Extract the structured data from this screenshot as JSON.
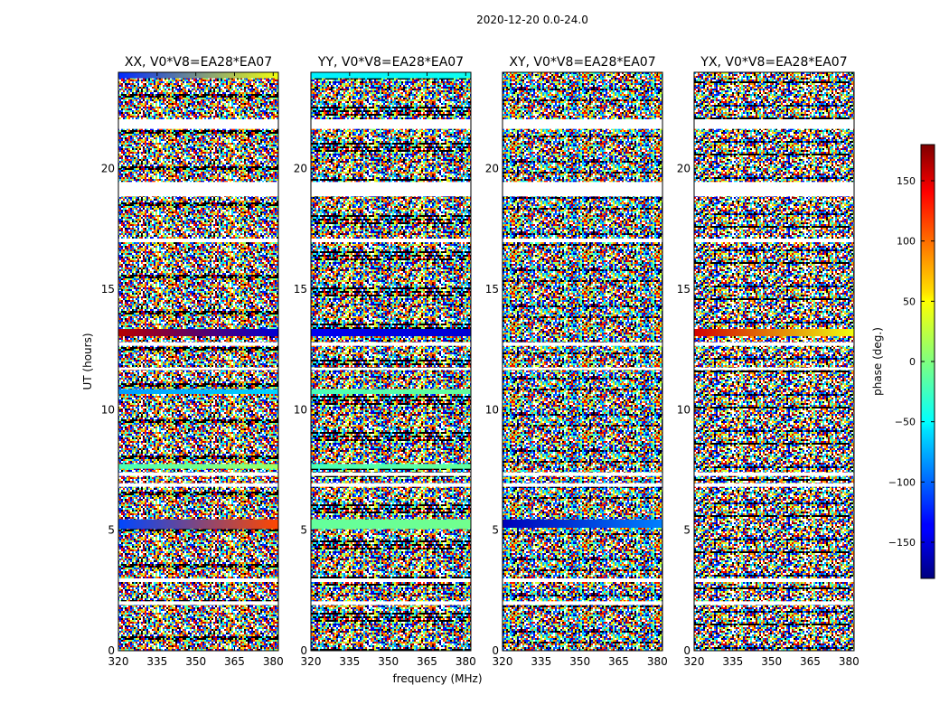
{
  "chart_data": {
    "type": "heatmap",
    "suptitle": "2020-12-20 0.0-24.0",
    "xlabel": "frequency (MHz)",
    "ylabel": "UT (hours)",
    "xlim": [
      320,
      382
    ],
    "ylim": [
      0,
      24
    ],
    "x_ticks": [
      "320",
      "335",
      "350",
      "365",
      "380"
    ],
    "y_ticks": [
      "0",
      "5",
      "10",
      "15",
      "20"
    ],
    "panels": [
      {
        "title": "XX, V0*V8=EA28*EA07",
        "bands": [
          {
            "t0": 24.0,
            "t1": 23.75,
            "phase_start": -120,
            "phase_end": 40
          },
          {
            "t0": 13.35,
            "t1": 13.05,
            "phase_start": 160,
            "phase_end": -150
          },
          {
            "t0": 10.85,
            "t1": 10.65,
            "phase_start": -80,
            "phase_end": -60
          },
          {
            "t0": 7.75,
            "t1": 7.55,
            "phase_start": -20,
            "phase_end": 10
          },
          {
            "t0": 5.45,
            "t1": 5.05,
            "phase_start": -110,
            "phase_end": 110
          }
        ]
      },
      {
        "title": "YY, V0*V8=EA28*EA07",
        "bands": [
          {
            "t0": 24.0,
            "t1": 23.75,
            "phase_start": -50,
            "phase_end": -40
          },
          {
            "t0": 13.35,
            "t1": 13.05,
            "phase_start": -140,
            "phase_end": -150
          },
          {
            "t0": 10.85,
            "t1": 10.65,
            "phase_start": -20,
            "phase_end": -10
          },
          {
            "t0": 7.75,
            "t1": 7.55,
            "phase_start": -20,
            "phase_end": -10
          },
          {
            "t0": 5.45,
            "t1": 5.05,
            "phase_start": -10,
            "phase_end": -5
          }
        ]
      },
      {
        "title": "XY, V0*V8=EA28*EA07",
        "bands": [
          {
            "t0": 5.45,
            "t1": 5.1,
            "phase_start": -160,
            "phase_end": -90
          }
        ]
      },
      {
        "title": "YX, V0*V8=EA28*EA07",
        "bands": [
          {
            "t0": 13.35,
            "t1": 13.05,
            "phase_start": 150,
            "phase_end": 40
          }
        ]
      }
    ],
    "flagged_gaps": [
      {
        "t0": 22.05,
        "t1": 21.65
      },
      {
        "t0": 19.45,
        "t1": 18.85
      },
      {
        "t0": 17.1,
        "t1": 16.95
      },
      {
        "t0": 12.8,
        "t1": 12.65
      },
      {
        "t0": 11.75,
        "t1": 11.65
      },
      {
        "t0": 7.4,
        "t1": 7.25
      },
      {
        "t0": 6.95,
        "t1": 6.8
      },
      {
        "t0": 3.0,
        "t1": 2.85
      },
      {
        "t0": 2.05,
        "t1": 1.9
      }
    ],
    "colorbar": {
      "label": "phase (deg.)",
      "range": [
        -180,
        180
      ],
      "ticks": [
        "−150",
        "−100",
        "−50",
        "0",
        "50",
        "100",
        "150"
      ],
      "tick_values": [
        -150,
        -100,
        -50,
        0,
        50,
        100,
        150
      ]
    }
  }
}
